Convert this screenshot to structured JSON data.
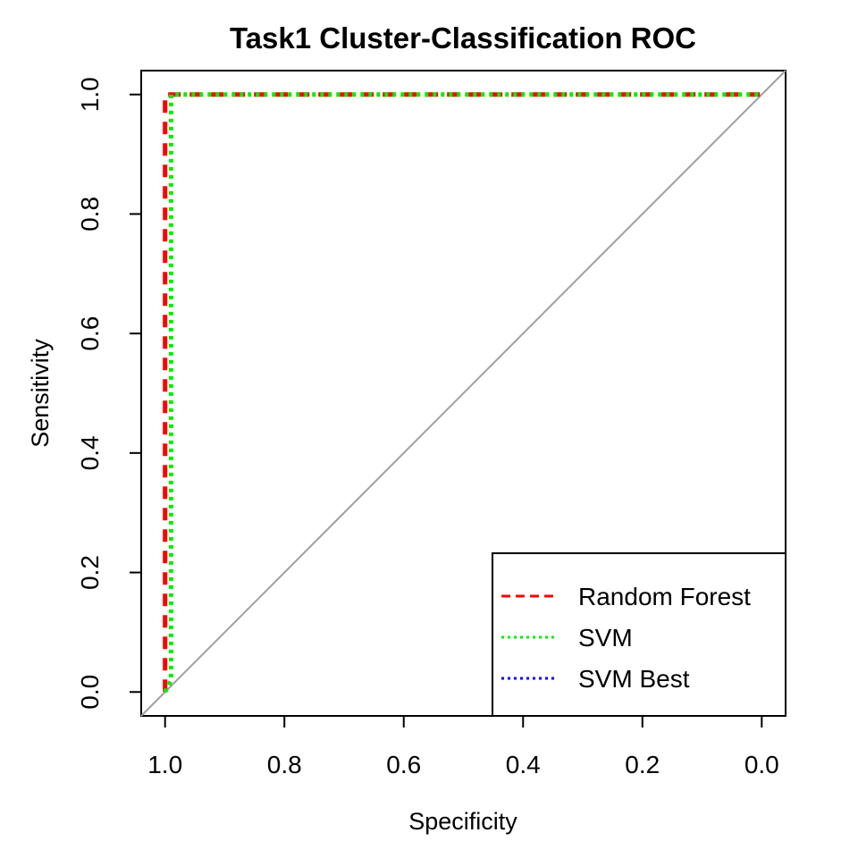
{
  "chart_data": {
    "type": "line",
    "title": "Task1 Cluster-Classification ROC",
    "xlabel": "Specificity",
    "ylabel": "Sensitivity",
    "xlim": [
      1.04,
      -0.04
    ],
    "ylim": [
      -0.04,
      1.04
    ],
    "x_reversed": true,
    "x_ticks": [
      "1.0",
      "0.8",
      "0.6",
      "0.4",
      "0.2",
      "0.0"
    ],
    "y_ticks": [
      "0.0",
      "0.2",
      "0.4",
      "0.6",
      "0.8",
      "1.0"
    ],
    "x_tick_values": [
      1.0,
      0.8,
      0.6,
      0.4,
      0.2,
      0.0
    ],
    "y_tick_values": [
      0.0,
      0.2,
      0.4,
      0.6,
      0.8,
      1.0
    ],
    "diagonal": {
      "color": "#a0a0a0",
      "from": [
        1.0,
        0.0
      ],
      "to": [
        0.0,
        1.0
      ]
    },
    "grid": false,
    "legend_position": "bottom-right",
    "series": [
      {
        "name": "Random Forest",
        "color": "#ff0000",
        "dash": "dashed",
        "x": [
          1.0,
          1.0,
          0.0
        ],
        "y": [
          0.0,
          1.0,
          1.0
        ]
      },
      {
        "name": "SVM",
        "color": "#00ee00",
        "dash": "dotted",
        "x": [
          1.0,
          0.99,
          0.99,
          0.0
        ],
        "y": [
          0.0,
          0.02,
          1.0,
          1.0
        ]
      },
      {
        "name": "SVM Best",
        "color": "#0000ff",
        "dash": "dotted",
        "x": [],
        "y": []
      }
    ]
  }
}
